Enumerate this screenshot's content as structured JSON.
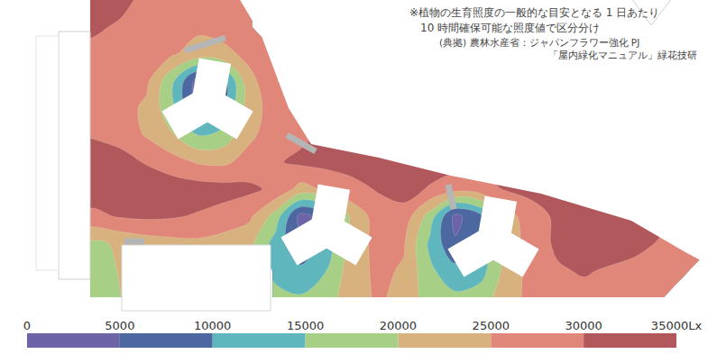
{
  "chart_data": {
    "type": "contour",
    "note": [
      "※植物の生育照度の一般的な目安となる 1 日あたり",
      "10 時間確保可能な照度値で区分分け"
    ],
    "source": [
      "(典拠) 農林水産省：ジャパンフラワー強化 PJ",
      "「屋内緑化マニュアル」緑花技研"
    ],
    "tick_labels": false,
    "colorbar": {
      "range": [
        0,
        35000
      ],
      "ticks": [
        0,
        5000,
        10000,
        15000,
        20000,
        25000,
        30000,
        {
          "value": 35000,
          "label": "35000Lx"
        }
      ],
      "colors": [
        "#6c64a6",
        "#4d67a0",
        "#5fb7bd",
        "#a7cf86",
        "#d8b27e",
        "#e0877a",
        "#b0585b"
      ]
    },
    "cells": [
      [
        null,
        null,
        31000,
        31500,
        31000,
        29000,
        28000,
        27500,
        28000,
        28500,
        null,
        null,
        null,
        null,
        null,
        null,
        null,
        null,
        null,
        null,
        null,
        null,
        null,
        null,
        null,
        null,
        null,
        null
      ],
      [
        null,
        null,
        31000,
        30500,
        29500,
        28000,
        27000,
        26000,
        26500,
        27500,
        null,
        null,
        null,
        null,
        null,
        null,
        null,
        null,
        null,
        null,
        null,
        null,
        null,
        null,
        null,
        null,
        null,
        null
      ],
      [
        null,
        null,
        29500,
        29000,
        28000,
        27000,
        25500,
        23000,
        24000,
        26000,
        28000,
        null,
        null,
        null,
        null,
        null,
        null,
        null,
        null,
        null,
        null,
        null,
        null,
        null,
        null,
        null,
        null,
        null
      ],
      [
        null,
        null,
        28500,
        28000,
        27000,
        26000,
        16000,
        2500,
        8000,
        24000,
        27500,
        null,
        null,
        null,
        null,
        null,
        null,
        null,
        null,
        null,
        null,
        null,
        null,
        null,
        null,
        null,
        null,
        null
      ],
      [
        null,
        null,
        28000,
        27500,
        27000,
        24000,
        16500,
        3000,
        10000,
        23000,
        27000,
        28500,
        null,
        null,
        null,
        null,
        null,
        null,
        null,
        null,
        null,
        null,
        null,
        null,
        null,
        null,
        null,
        null
      ],
      [
        null,
        null,
        30500,
        29500,
        28000,
        24500,
        20500,
        15000,
        17000,
        24000,
        27500,
        29000,
        31000,
        32000,
        32500,
        null,
        null,
        null,
        null,
        null,
        null,
        null,
        null,
        null,
        null,
        null,
        null,
        null
      ],
      [
        null,
        null,
        31500,
        32500,
        32000,
        29500,
        27000,
        24500,
        24000,
        27000,
        29500,
        31000,
        31500,
        32500,
        33000,
        33000,
        32500,
        32000,
        31500,
        31000,
        null,
        null,
        null,
        null,
        null,
        null,
        null,
        null
      ],
      [
        null,
        null,
        31000,
        32500,
        33500,
        34000,
        33000,
        32500,
        32000,
        31000,
        29000,
        23000,
        26000,
        28000,
        30500,
        32000,
        29500,
        27000,
        28000,
        30500,
        31500,
        32000,
        32500,
        32000,
        null,
        null,
        null,
        null
      ],
      [
        null,
        null,
        29500,
        29000,
        30500,
        31000,
        30500,
        29500,
        28000,
        26000,
        18000,
        3000,
        8000,
        22000,
        27000,
        28000,
        18000,
        3500,
        9000,
        23000,
        28000,
        31000,
        32500,
        33000,
        32500,
        31500,
        30500,
        null
      ],
      [
        null,
        null,
        18500,
        19000,
        21000,
        22500,
        23500,
        24000,
        23000,
        21500,
        13000,
        6000,
        12000,
        22500,
        26500,
        25500,
        14000,
        5500,
        11000,
        22000,
        27500,
        31000,
        32000,
        32500,
        31500,
        29500,
        28500,
        28000
      ],
      [
        null,
        null,
        17000,
        17500,
        20500,
        null,
        null,
        null,
        null,
        null,
        14000,
        11000,
        15000,
        23000,
        26000,
        24500,
        16000,
        11500,
        13000,
        22000,
        27000,
        29500,
        30500,
        29500,
        28500,
        27500,
        27000,
        null
      ],
      [
        null,
        null,
        16500,
        17000,
        20000,
        null,
        null,
        null,
        null,
        null,
        16000,
        15500,
        17500,
        23500,
        25500,
        24000,
        17000,
        16000,
        17500,
        23000,
        26500,
        28000,
        28500,
        28000,
        27500,
        27000,
        null,
        null
      ]
    ]
  }
}
